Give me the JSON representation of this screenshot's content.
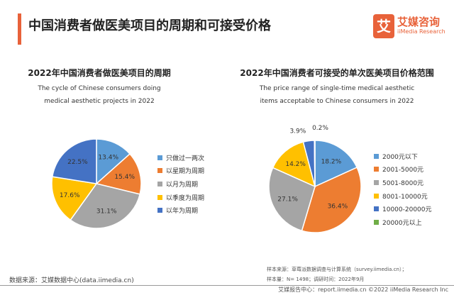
{
  "header": {
    "title": "中国消费者做医美项目的周期和可接受价格"
  },
  "logo": {
    "mark": "艾",
    "cn": "艾媒咨询",
    "en": "iiMedia Research"
  },
  "chart_data": [
    {
      "type": "pie",
      "title": "2022年中国消费者做医美项目的周期",
      "subtitle": [
        "The cycle of Chinese consumers doing",
        "medical aesthetic projects in 2022"
      ],
      "categories": [
        "只做过一两次",
        "以星期为周期",
        "以月为周期",
        "以季度为周期",
        "以年为周期"
      ],
      "values": [
        13.4,
        15.4,
        31.1,
        17.6,
        22.5
      ],
      "labels": [
        "13.4%",
        "15.4%",
        "31.1%",
        "17.6%",
        "22.5%"
      ],
      "colors": [
        "#5b9bd5",
        "#ed7d31",
        "#a5a5a5",
        "#ffc000",
        "#4472c4"
      ],
      "legend": "right"
    },
    {
      "type": "pie",
      "title": "2022年中国消费者可接受的单次医美项目价格范围",
      "subtitle": [
        "The price range of single-time medical aesthetic",
        "items acceptable to Chinese consumers in 2022"
      ],
      "categories": [
        "2000元以下",
        "2001-5000元",
        "5001-8000元",
        "8001-10000元",
        "10000-20000元",
        "20000元以上"
      ],
      "values": [
        18.2,
        36.4,
        27.1,
        14.2,
        3.9,
        0.2
      ],
      "labels": [
        "18.2%",
        "36.4%",
        "27.1%",
        "14.2%",
        "3.9%",
        "0.2%"
      ],
      "colors": [
        "#5b9bd5",
        "#ed7d31",
        "#a5a5a5",
        "#ffc000",
        "#4472c4",
        "#70ad47"
      ],
      "legend": "right"
    }
  ],
  "footer": {
    "source": "数据来源：艾媒数据中心(data.iimedia.cn)",
    "sample_source": "样本来源：草莓派数据调查与计算系统（survey.iimedia.cn）；",
    "sample_size": "样本量：N= 1498；调研时间：2022年9月",
    "copyright": "艾媒报告中心：report.iimedia.cn  ©2022  iiMedia Research Inc"
  }
}
